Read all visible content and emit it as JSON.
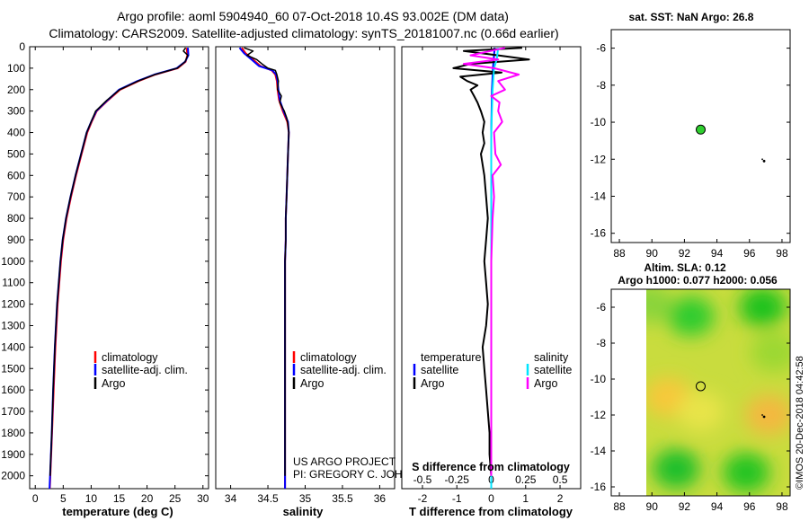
{
  "header": {
    "title_line1": "Argo profile: aoml 5904940_60 07-Oct-2018 10.4S 93.002E (DM data)",
    "title_line2": "Climatology: CARS2009. Satellite-adjusted climatology: synTS_20181007.nc (0.66d earlier)"
  },
  "colors": {
    "climatology": "#ff0000",
    "satellite": "#0000ff",
    "argo": "#000000",
    "sat_salinity": "#00e5ff",
    "argo_salinity": "#ff00ff"
  },
  "watermark": "©IMOS 20-Dec-2018 04:42:58",
  "chart_data": [
    {
      "type": "line",
      "id": "temperature",
      "xlabel": "temperature (deg C)",
      "ylabel": "depth",
      "xlim": [
        -1,
        31
      ],
      "ylim": [
        2060,
        0
      ],
      "x_ticks": [
        "0",
        "5",
        "10",
        "15",
        "20",
        "25",
        "30"
      ],
      "y_ticks": [
        "0",
        "100",
        "200",
        "300",
        "400",
        "500",
        "600",
        "700",
        "800",
        "900",
        "1000",
        "1100",
        "1200",
        "1300",
        "1400",
        "1500",
        "1600",
        "1700",
        "1800",
        "1900",
        "2000"
      ],
      "legend": [
        "climatology",
        "satellite-adj. clim.",
        "Argo"
      ],
      "series": [
        {
          "name": "climatology",
          "depth": [
            5,
            40,
            70,
            100,
            130,
            160,
            200,
            250,
            300,
            350,
            400,
            500,
            600,
            700,
            800,
            900,
            1000,
            1200,
            1400,
            1600,
            1800,
            2000,
            2060
          ],
          "values": [
            27.1,
            27.2,
            26.9,
            25.5,
            21.5,
            18.5,
            15.2,
            13.0,
            11.0,
            10.1,
            9.3,
            8.3,
            7.3,
            6.4,
            5.6,
            5.0,
            4.6,
            4.0,
            3.6,
            3.3,
            3.0,
            2.7,
            2.6
          ]
        },
        {
          "name": "satellite-adj. clim.",
          "depth": [
            5,
            40,
            70,
            100,
            130,
            160,
            200,
            250,
            300,
            350,
            400,
            500,
            600,
            700,
            800,
            900,
            1000,
            1200,
            1400,
            1600,
            1800,
            2000,
            2060
          ],
          "values": [
            27.3,
            27.4,
            26.8,
            25.3,
            21.3,
            18.3,
            15.0,
            12.9,
            10.9,
            10.0,
            9.2,
            8.2,
            7.2,
            6.3,
            5.5,
            4.9,
            4.5,
            3.9,
            3.5,
            3.2,
            2.95,
            2.65,
            2.55
          ]
        },
        {
          "name": "Argo",
          "depth": [
            5,
            20,
            40,
            70,
            100,
            130,
            160,
            200,
            250,
            300,
            350,
            400,
            500,
            600,
            700,
            800,
            900,
            1000,
            1200,
            1400,
            1600,
            1800,
            2000
          ],
          "values": [
            26.9,
            26.5,
            27.3,
            26.8,
            25.4,
            21.4,
            18.4,
            15.1,
            12.8,
            10.8,
            10.0,
            9.2,
            8.2,
            7.2,
            6.3,
            5.5,
            4.9,
            4.5,
            3.9,
            3.5,
            3.2,
            2.95,
            2.65
          ]
        }
      ]
    },
    {
      "type": "line",
      "id": "salinity",
      "xlabel": "salinity",
      "xlim": [
        33.8,
        36.2
      ],
      "ylim": [
        2060,
        0
      ],
      "x_ticks": [
        "34",
        "34.5",
        "35",
        "35.5",
        "36"
      ],
      "legend": [
        "climatology",
        "satellite-adj. clim.",
        "Argo"
      ],
      "annotation_line1": "US ARGO PROJECT",
      "annotation_line2": "PI: GREGORY C. JOHNSON",
      "series": [
        {
          "name": "climatology",
          "depth": [
            5,
            30,
            60,
            90,
            110,
            130,
            160,
            200,
            250,
            300,
            350,
            400,
            500,
            600,
            700,
            800,
            900,
            1000,
            1200,
            1400,
            1600,
            1800,
            2000,
            2060
          ],
          "values": [
            34.15,
            34.2,
            34.3,
            34.4,
            34.55,
            34.6,
            34.62,
            34.63,
            34.65,
            34.7,
            34.76,
            34.78,
            34.77,
            34.76,
            34.75,
            34.74,
            34.74,
            34.73,
            34.73,
            34.73,
            34.73,
            34.73,
            34.73,
            34.73
          ]
        },
        {
          "name": "satellite-adj. clim.",
          "depth": [
            5,
            30,
            60,
            90,
            110,
            130,
            160,
            200,
            250,
            300,
            350,
            400,
            500,
            600,
            700,
            800,
            900,
            1000,
            1200,
            1400,
            1600,
            1800,
            2000,
            2060
          ],
          "values": [
            34.12,
            34.18,
            34.28,
            34.38,
            34.56,
            34.61,
            34.63,
            34.64,
            34.66,
            34.71,
            34.77,
            34.78,
            34.77,
            34.76,
            34.75,
            34.74,
            34.74,
            34.73,
            34.73,
            34.73,
            34.73,
            34.73,
            34.73,
            34.73
          ]
        },
        {
          "name": "Argo",
          "depth": [
            5,
            20,
            40,
            60,
            80,
            100,
            110,
            130,
            160,
            200,
            230,
            260,
            300,
            330,
            360,
            400,
            500,
            600,
            700,
            800,
            900,
            1000,
            1200,
            1400,
            1600,
            1800,
            2000
          ],
          "values": [
            34.18,
            34.3,
            34.22,
            34.35,
            34.42,
            34.5,
            34.6,
            34.62,
            34.64,
            34.63,
            34.68,
            34.66,
            34.72,
            34.75,
            34.77,
            34.78,
            34.77,
            34.76,
            34.75,
            34.74,
            34.74,
            34.73,
            34.73,
            34.73,
            34.73,
            34.73,
            34.73
          ]
        }
      ]
    },
    {
      "type": "line",
      "id": "differences",
      "xlabel": "T difference from climatology",
      "xlabel_top": "S difference from climatology",
      "xlim": [
        -2.6,
        2.6
      ],
      "ylim": [
        2060,
        0
      ],
      "x_ticks_T": [
        "-2",
        "-1",
        "0",
        "1",
        "2"
      ],
      "x_ticks_S": [
        "-0.5",
        "-0.25",
        "0",
        "0.25",
        "0.5"
      ],
      "legend_T_title": "temperature",
      "legend_S_title": "salinity",
      "legend_T": [
        "satellite",
        "Argo"
      ],
      "legend_S": [
        "satellite",
        "Argo"
      ],
      "series": [
        {
          "name": "T satellite",
          "depth": [
            5,
            100,
            200,
            400,
            600,
            800,
            1000,
            1500,
            2000,
            2060
          ],
          "values": [
            0.1,
            0.05,
            0.02,
            0.0,
            0.0,
            0.0,
            0.0,
            0.0,
            0.0,
            0.0
          ]
        },
        {
          "name": "T Argo",
          "depth": [
            5,
            20,
            40,
            60,
            80,
            100,
            120,
            140,
            160,
            180,
            200,
            230,
            260,
            300,
            350,
            400,
            450,
            500,
            600,
            700,
            800,
            900,
            1000,
            1100,
            1200,
            1300,
            1400,
            1500,
            1600,
            1700,
            1800,
            1900,
            2000
          ],
          "values": [
            0.9,
            -0.8,
            0.2,
            1.1,
            -0.6,
            -1.1,
            0.3,
            -0.9,
            -0.7,
            -0.4,
            -0.6,
            -0.5,
            -0.4,
            -0.3,
            -0.2,
            -0.25,
            -0.2,
            -0.3,
            -0.2,
            -0.15,
            -0.1,
            -0.15,
            -0.2,
            -0.15,
            -0.1,
            -0.15,
            -0.25,
            -0.2,
            -0.15,
            -0.1,
            -0.05,
            -0.05,
            0.0
          ]
        },
        {
          "name": "S satellite",
          "depth": [
            5,
            60,
            100,
            200,
            400,
            800,
            1200,
            2000,
            2060
          ],
          "values": [
            0.05,
            0.04,
            0.02,
            0.01,
            0.0,
            0.0,
            0.0,
            0.0,
            0.0
          ]
        },
        {
          "name": "S Argo",
          "depth": [
            5,
            40,
            60,
            80,
            100,
            130,
            160,
            200,
            230,
            260,
            300,
            350,
            400,
            500,
            550,
            600,
            700,
            800,
            1000,
            1200,
            1500,
            2000
          ],
          "values": [
            0.1,
            -0.15,
            0.05,
            -0.2,
            0.02,
            0.2,
            0.05,
            0.1,
            0.0,
            0.06,
            0.05,
            0.08,
            0.02,
            0.03,
            0.07,
            0.01,
            0.02,
            0.01,
            0.0,
            0.0,
            0.0,
            0.0
          ]
        }
      ]
    },
    {
      "type": "scatter",
      "id": "sst-map",
      "title": "sat. SST: NaN Argo: 26.8",
      "xlim": [
        87.5,
        98.5
      ],
      "ylim": [
        -16.5,
        -5
      ],
      "x_ticks": [
        "88",
        "90",
        "92",
        "94",
        "96",
        "98"
      ],
      "y_ticks": [
        "-6",
        "-8",
        "-10",
        "-12",
        "-14",
        "-16"
      ],
      "points": [
        {
          "name": "profile",
          "lon": 93.0,
          "lat": -10.4
        },
        {
          "name": "track",
          "lon": 96.9,
          "lat": -12.1
        }
      ]
    },
    {
      "type": "heatmap",
      "id": "sla-map",
      "title_line1": "Altim. SLA: 0.12",
      "title_line2": "Argo h1000: 0.077 h2000: 0.056",
      "xlim": [
        87.5,
        98.5
      ],
      "ylim": [
        -16.5,
        -5
      ],
      "x_ticks": [
        "88",
        "90",
        "92",
        "94",
        "96",
        "98"
      ],
      "y_ticks": [
        "-6",
        "-8",
        "-10",
        "-12",
        "-14",
        "-16"
      ],
      "data_extent_lon": [
        90,
        98
      ],
      "points": [
        {
          "name": "profile",
          "lon": 93.0,
          "lat": -10.4
        },
        {
          "name": "track",
          "lon": 96.9,
          "lat": -12.1
        }
      ],
      "blobs": [
        {
          "lon": 92.4,
          "lat": -6.5,
          "color": "#2ecc2e"
        },
        {
          "lon": 96.8,
          "lat": -6.0,
          "color": "#1fc21f"
        },
        {
          "lon": 91.5,
          "lat": -15.0,
          "color": "#1fbf2a"
        },
        {
          "lon": 95.8,
          "lat": -15.2,
          "color": "#22c422"
        },
        {
          "lon": 89.8,
          "lat": -5.8,
          "color": "#8ad43a"
        },
        {
          "lon": 97.5,
          "lat": -8.5,
          "color": "#9bd832"
        },
        {
          "lon": 91.0,
          "lat": -11.0,
          "color": "#f7c83a"
        },
        {
          "lon": 97.2,
          "lat": -12.0,
          "color": "#f4b840"
        },
        {
          "lon": 93.0,
          "lat": -11.8,
          "color": "#e8e448"
        }
      ]
    }
  ]
}
